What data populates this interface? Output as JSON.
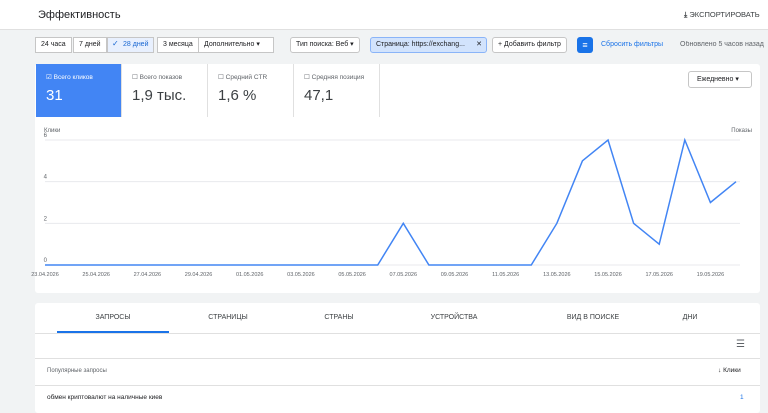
{
  "header": {
    "title": "Эффективность",
    "export": "ЭКСПОРТИРОВАТЬ"
  },
  "filters": {
    "ranges": [
      "24 часа",
      "7 дней",
      "28 дней",
      "3 месяца"
    ],
    "more": "Дополнительно",
    "search_type": "Тип поиска: Веб",
    "page": "Страница: https://exchang...",
    "add": "Добавить фильтр",
    "reset": "Сбросить фильтры",
    "updated": "Обновлено 5 часов назад"
  },
  "metrics": [
    {
      "label": "Всего кликов",
      "value": "31"
    },
    {
      "label": "Всего показов",
      "value": "1,9 тыс."
    },
    {
      "label": "Средний CTR",
      "value": "1,6 %"
    },
    {
      "label": "Средняя позиция",
      "value": "47,1"
    }
  ],
  "granularity": "Ежедневно",
  "chart_data": {
    "type": "line",
    "y_label": "Клики",
    "y2_label": "Показы",
    "categories": [
      "23.04.2026",
      null,
      "25.04.2026",
      null,
      "27.04.2026",
      null,
      "29.04.2026",
      null,
      "01.05.2026",
      null,
      "03.05.2026",
      null,
      "05.05.2026",
      null,
      "07.05.2026",
      null,
      "09.05.2026",
      null,
      "11.05.2026",
      null,
      "13.05.2026",
      null,
      "15.05.2026",
      null,
      "17.05.2026",
      null,
      "19.05.2026",
      null
    ],
    "series": [
      {
        "name": "Клики",
        "color": "#4285f4",
        "values": [
          0,
          0,
          0,
          0,
          0,
          0,
          0,
          0,
          0,
          0,
          0,
          0,
          0,
          0,
          2,
          0,
          0,
          0,
          0,
          0,
          2,
          5,
          6,
          2,
          1,
          6,
          3,
          4
        ]
      }
    ],
    "ylim": [
      0,
      6
    ],
    "yticks": [
      0,
      2,
      4,
      6
    ],
    "grid": true
  },
  "tabs": [
    "ЗАПРОСЫ",
    "СТРАНИЦЫ",
    "СТРАНЫ",
    "УСТРОЙСТВА",
    "ВИД В ПОИСКЕ",
    "ДНИ"
  ],
  "table": {
    "title": "Популярные запросы",
    "column": "Клики",
    "rows": [
      [
        "обмен криптовалют на наличные киев",
        "1"
      ]
    ]
  }
}
